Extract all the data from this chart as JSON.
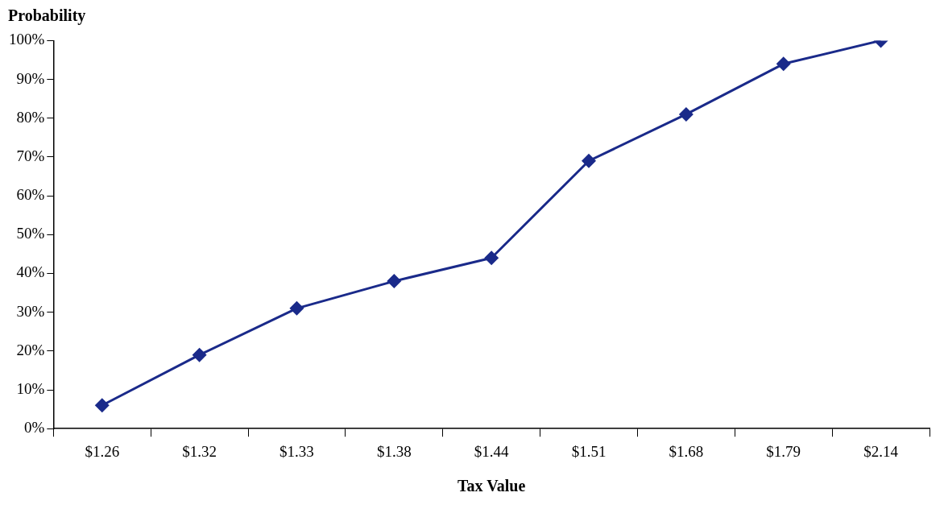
{
  "chart_data": {
    "type": "line",
    "ylabel": "Probability",
    "xlabel": "Tax Value",
    "categories": [
      "$1.26",
      "$1.32",
      "$1.33",
      "$1.38",
      "$1.44",
      "$1.51",
      "$1.68",
      "$1.79",
      "$2.14"
    ],
    "series": [
      {
        "color": "#1a2a8a",
        "values": [
          6,
          19,
          31,
          38,
          44,
          69,
          81,
          94,
          100
        ]
      }
    ],
    "ylim": [
      0,
      100
    ],
    "yticks": [
      {
        "value": 0,
        "label": "0%"
      },
      {
        "value": 10,
        "label": "10%"
      },
      {
        "value": 20,
        "label": "20%"
      },
      {
        "value": 30,
        "label": "30%"
      },
      {
        "value": 40,
        "label": "40%"
      },
      {
        "value": 50,
        "label": "50%"
      },
      {
        "value": 60,
        "label": "60%"
      },
      {
        "value": 70,
        "label": "70%"
      },
      {
        "value": 80,
        "label": "80%"
      },
      {
        "value": 90,
        "label": "90%"
      },
      {
        "value": 100,
        "label": "100%"
      }
    ],
    "grid": false,
    "legend": false,
    "marker": "diamond",
    "line_style": "solid"
  }
}
